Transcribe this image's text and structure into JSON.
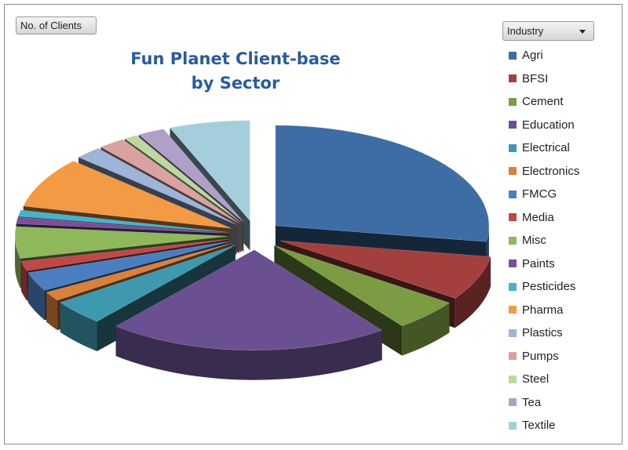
{
  "field_button": "No. of Clients",
  "filter_button": "Industry",
  "chart_data": {
    "type": "pie",
    "style": "3d-exploded",
    "title": [
      "Fun Planet Client-base",
      "by Sector"
    ],
    "categories": [
      "Agri",
      "BFSI",
      "Cement",
      "Education",
      "Electrical",
      "Electronics",
      "FMCG",
      "Media",
      "Misc",
      "Paints",
      "Pesticides",
      "Pharma",
      "Plastics",
      "Pumps",
      "Steel",
      "Tea",
      "Textile"
    ],
    "values": [
      27,
      7,
      5,
      21,
      4,
      1.5,
      3,
      1.5,
      5,
      1,
      1,
      8,
      2,
      2,
      1,
      2,
      6
    ],
    "colors": [
      "#3d6da4",
      "#a3403d",
      "#7b9c42",
      "#6a5090",
      "#3e98ae",
      "#d9803a",
      "#4a7ec0",
      "#c04848",
      "#8fb85a",
      "#7a4e9a",
      "#44b3cc",
      "#f39a45",
      "#9eb4d8",
      "#d9a2a0",
      "#bcd8a0",
      "#b0a0c8",
      "#a4cedc"
    ],
    "legend_position": "right"
  }
}
